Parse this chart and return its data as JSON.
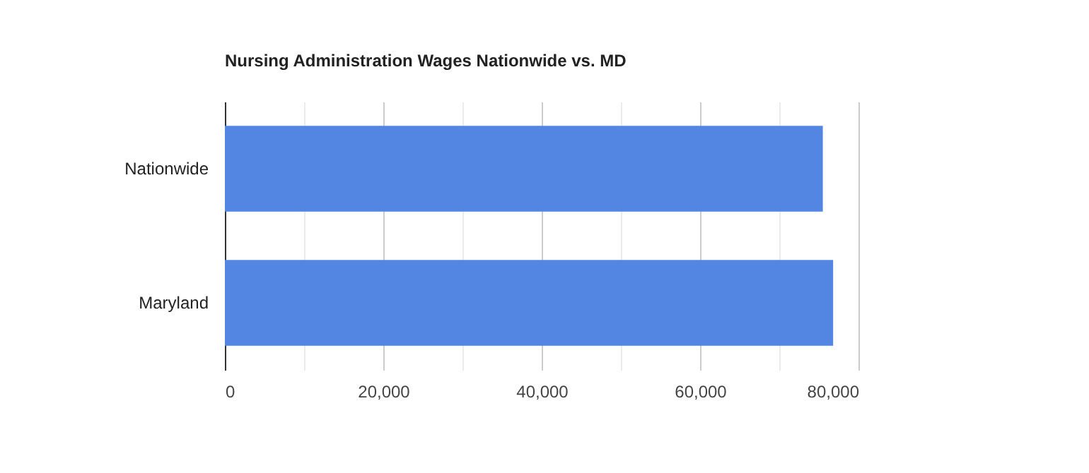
{
  "chart_data": {
    "type": "bar",
    "orientation": "horizontal",
    "title": "Nursing Administration Wages Nationwide vs. MD",
    "categories": [
      "Nationwide",
      "Maryland"
    ],
    "values": [
      75500,
      76800
    ],
    "color": "#5286e2",
    "xlim": [
      0,
      80000
    ],
    "xticks": [
      0,
      {
        "value": 10000,
        "label": null
      },
      {
        "value": 20000,
        "label": "20,000"
      },
      {
        "value": 30000,
        "label": null
      },
      {
        "value": 40000,
        "label": "40,000"
      },
      {
        "value": 50000,
        "label": null
      },
      {
        "value": 60000,
        "label": "60,000"
      },
      {
        "value": 70000,
        "label": null
      },
      {
        "value": 80000,
        "label": "80,000"
      }
    ],
    "grid": "x"
  }
}
